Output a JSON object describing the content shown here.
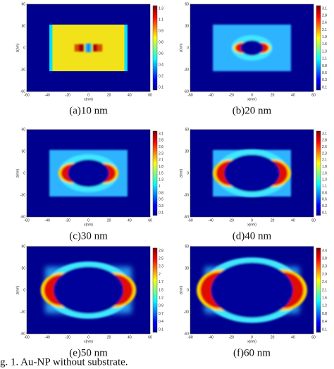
{
  "figure": {
    "axes": {
      "xticks": [
        "-60",
        "-40",
        "-20",
        "0",
        "20",
        "40",
        "60"
      ],
      "yticks": [
        "60",
        "30",
        "0",
        "-30",
        "-60"
      ],
      "xlabel": "x(nm)",
      "ylabel": "z(nm)"
    },
    "panels": [
      {
        "caption": "(a)10 nm",
        "colorbar_ticks": [
          "1.3",
          "1.1",
          "0.9",
          "0.8",
          "0.6",
          "0.4",
          "0.2",
          "0.1"
        ]
      },
      {
        "caption": "(b)20 nm",
        "colorbar_ticks": [
          "3.1",
          "2.8",
          "2.6",
          "2.1",
          "1.9",
          "1.6",
          "1.3",
          "1.1",
          "0.8",
          "0.6",
          "0.3",
          "0.1"
        ]
      },
      {
        "caption": "(c)30 nm",
        "colorbar_ticks": [
          "3.1",
          "2.8",
          "2.6",
          "2.3",
          "2.1",
          "1.8",
          "1.5",
          "1.3",
          "1",
          "0.8",
          "0.5",
          "0.3",
          "0.1"
        ]
      },
      {
        "caption": "(d)40 nm",
        "colorbar_ticks": [
          "3.1",
          "2.8",
          "2.6",
          "2.3",
          "2.1",
          "1.8",
          "1.6",
          "1.3",
          "1.1",
          "0.8",
          "0.6",
          "0.3",
          "0.1"
        ]
      },
      {
        "caption": "(e)50 nm",
        "colorbar_ticks": [
          "2.8",
          "2.5",
          "2.3",
          "2",
          "1.7",
          "1.5",
          "1.2",
          "0.9",
          "0.7",
          "0.4",
          "0.1"
        ]
      },
      {
        "caption": "(f)60 nm",
        "colorbar_ticks": [
          "4.4",
          "3.8",
          "3.3",
          "2.9",
          "2.4",
          "2.1",
          "1.6",
          "1.2",
          "0.8",
          "0.4",
          "0.1"
        ]
      }
    ],
    "caption": "g. 1. Au-NP without substrate."
  }
}
